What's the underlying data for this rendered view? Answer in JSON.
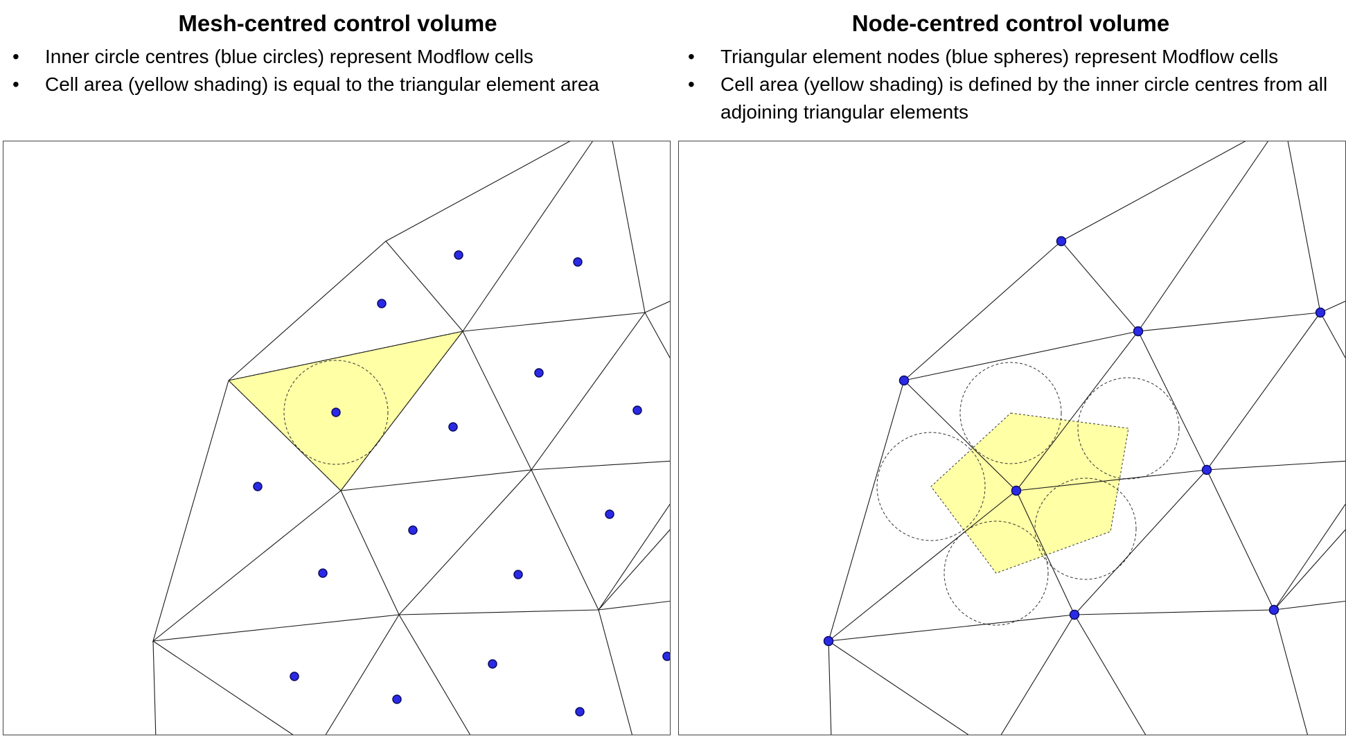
{
  "left": {
    "title": "Mesh-centred control volume",
    "bullets": [
      "Inner circle centres (blue circles) represent Modflow cells",
      "Cell area (yellow shading) is equal to the triangular element area"
    ]
  },
  "right": {
    "title": "Node-centred control volume",
    "bullets": [
      "Triangular element nodes (blue spheres) represent Modflow cells",
      "Cell area (yellow shading) is defined by the inner circle centres from all adjoining triangular elements"
    ]
  },
  "colors": {
    "node_fill": "#2a2ae6",
    "node_stroke": "#0a0a60",
    "shading": "#ffffa6",
    "panel_border": "#444444"
  }
}
